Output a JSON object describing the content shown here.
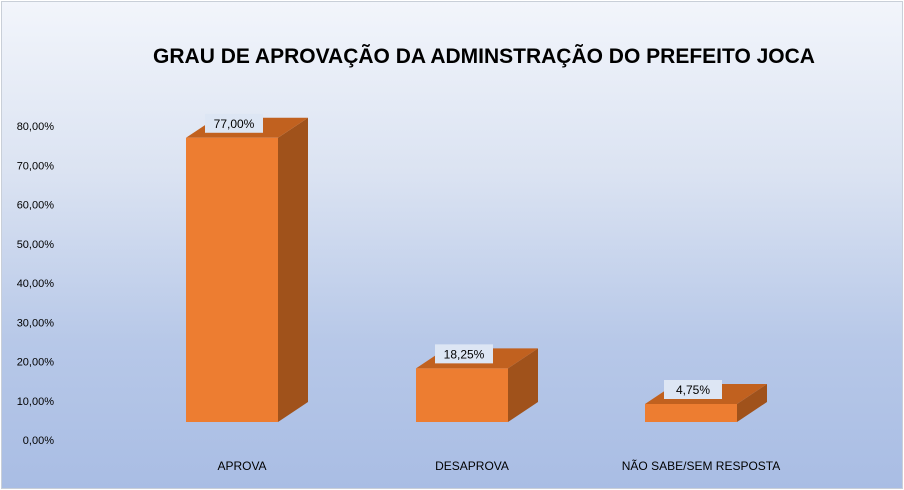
{
  "chart_data": {
    "type": "bar",
    "title": "GRAU DE APROVAÇÃO DA ADMINSTRAÇÃO DO PREFEITO JOCA",
    "categories": [
      "APROVA",
      "DESAPROVA",
      "NÃO SABE/SEM RESPOSTA"
    ],
    "values": [
      77.0,
      18.25,
      4.75
    ],
    "data_labels": [
      "77,00%",
      "18,25%",
      "4,75%"
    ],
    "y_ticks": [
      "0,00%",
      "10,00%",
      "20,00%",
      "30,00%",
      "40,00%",
      "50,00%",
      "60,00%",
      "70,00%",
      "80,00%"
    ],
    "ylim": [
      0,
      80
    ],
    "xlabel": "",
    "ylabel": "",
    "grid": false,
    "legend": "none",
    "style": "3d-column",
    "colors": {
      "bar_front": "#ed7d31",
      "bar_side": "#a0521b",
      "bar_top": "#c1611f",
      "label_box": "#dde6f4"
    }
  }
}
